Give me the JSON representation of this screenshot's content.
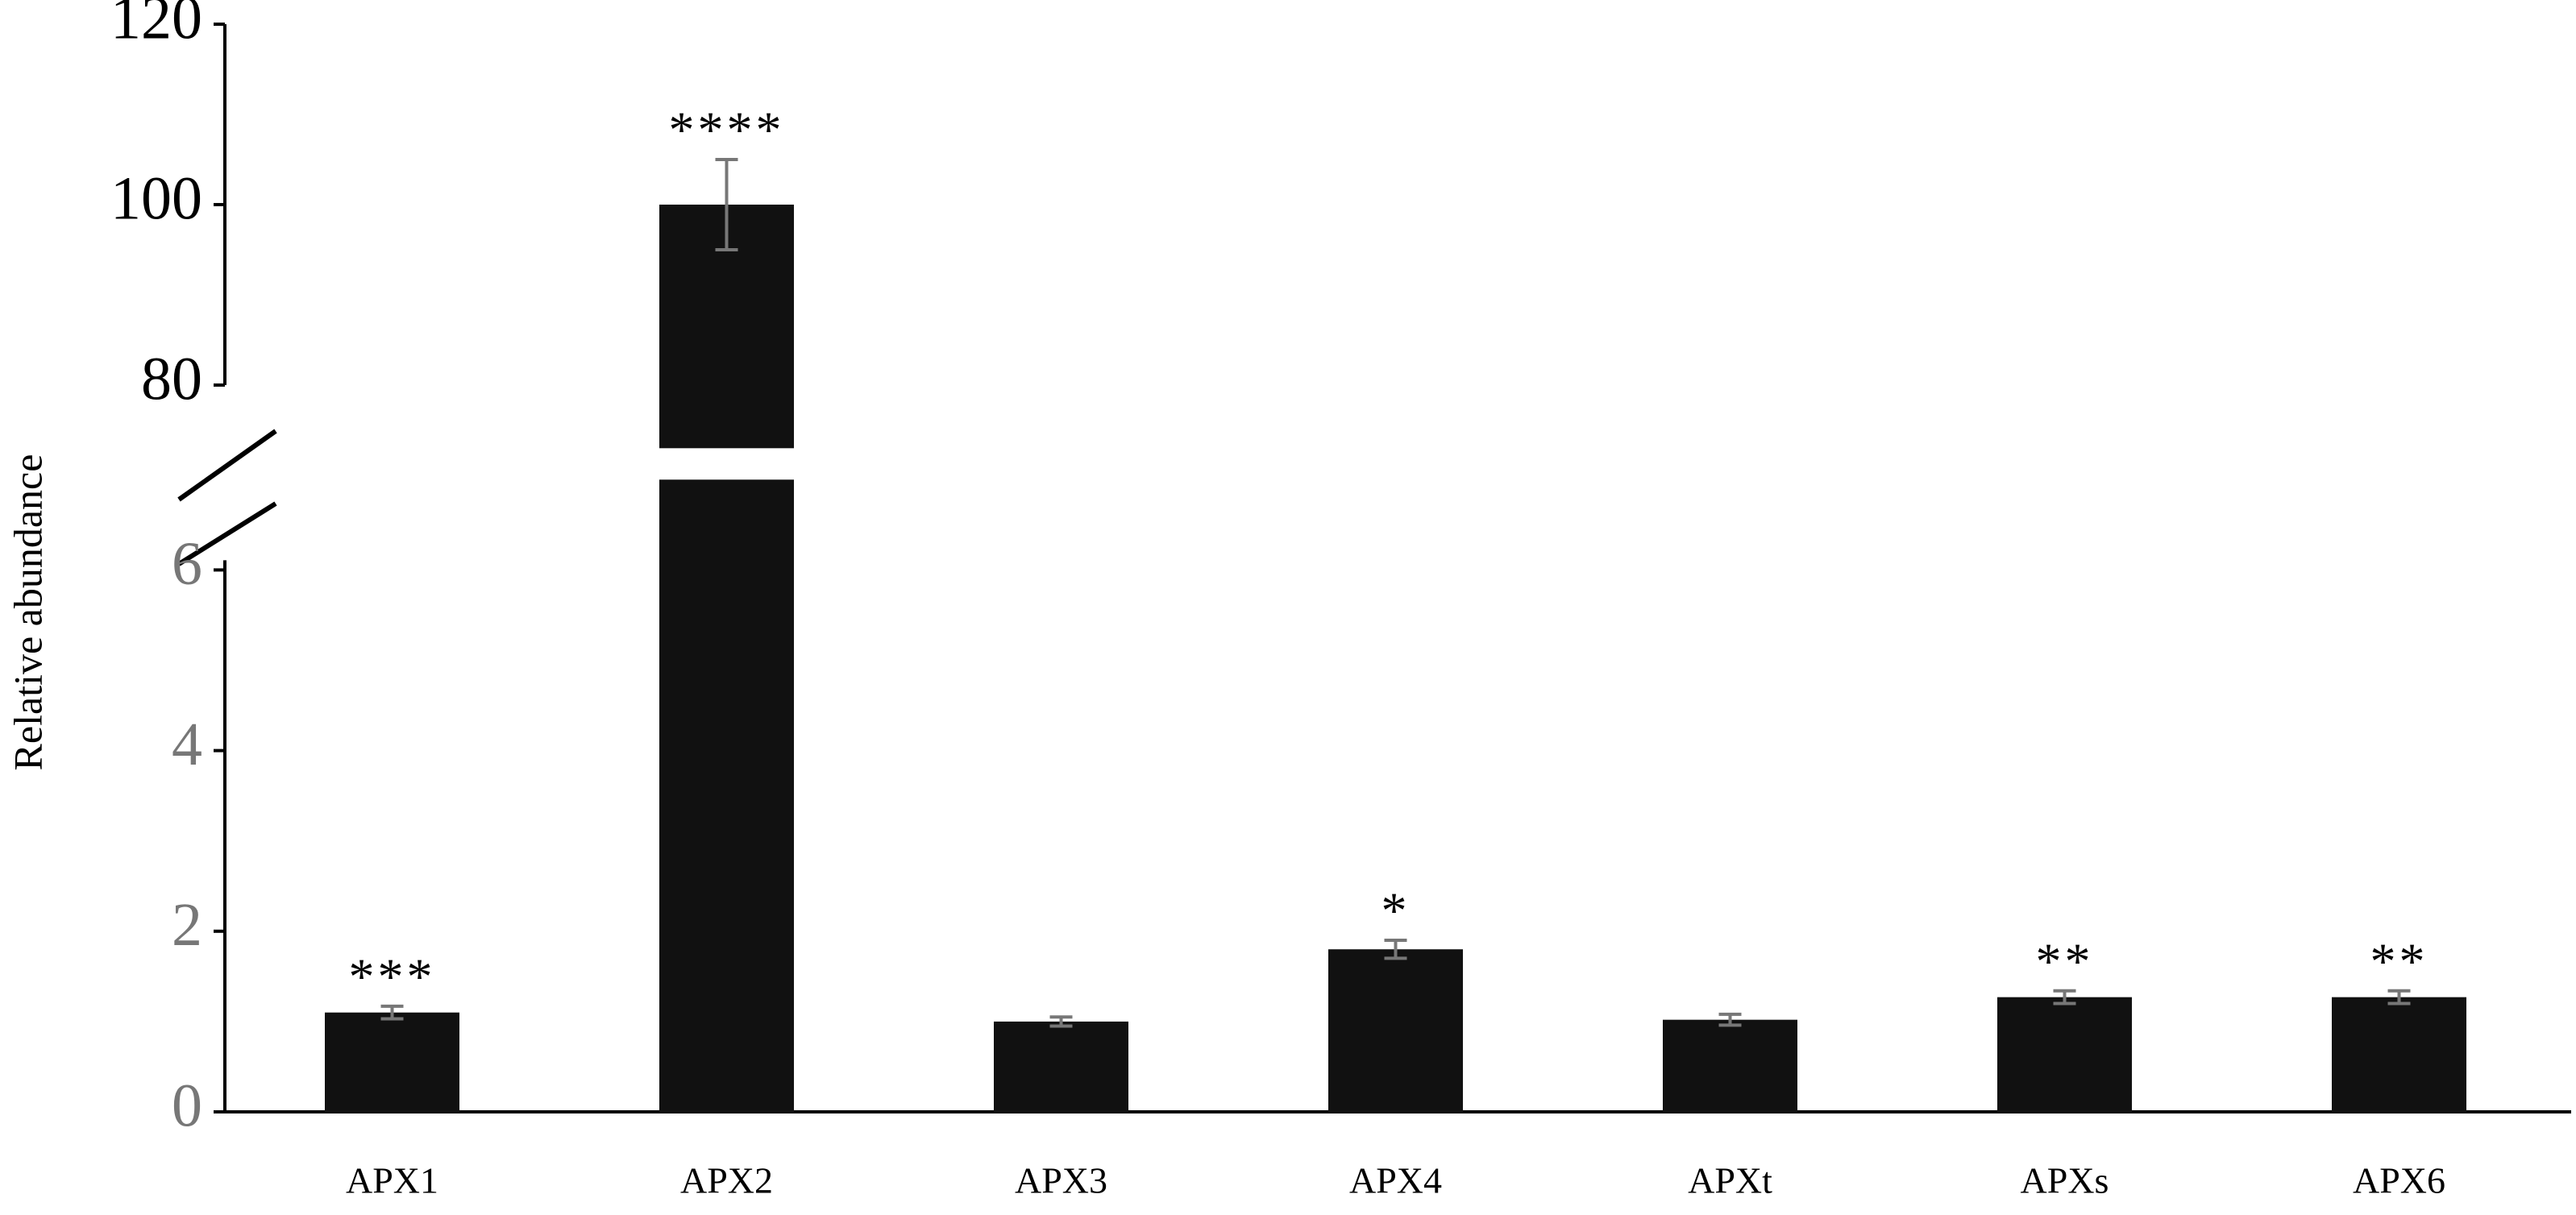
{
  "chart_data": {
    "type": "bar",
    "y_label": "Relative abundance",
    "categories": [
      "APX1",
      "APX2",
      "APX3",
      "APX4",
      "APXt",
      "APXs",
      "APX6"
    ],
    "values": [
      1.1,
      100,
      1.0,
      1.8,
      1.02,
      1.27,
      1.27
    ],
    "errors": [
      0.07,
      5,
      0.05,
      0.1,
      0.06,
      0.07,
      0.07
    ],
    "annotations": [
      "***",
      "****",
      null,
      "*",
      null,
      "**",
      "**"
    ],
    "color": "#111111",
    "error_color": "#777777",
    "ylim": [
      0,
      120
    ],
    "axis_break": [
      7,
      73
    ],
    "yticks": [
      0,
      2,
      4,
      6,
      80,
      100,
      120
    ]
  }
}
